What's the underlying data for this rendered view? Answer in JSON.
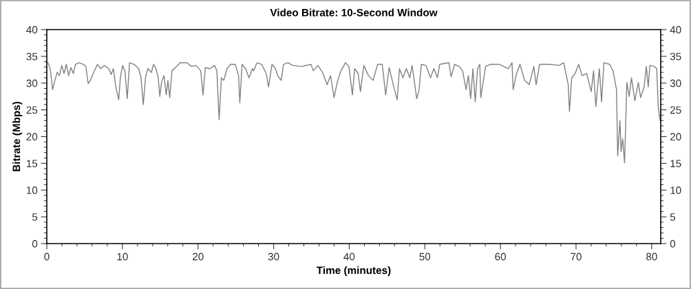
{
  "chart_data": {
    "type": "line",
    "title": "Video Bitrate: 10-Second Window",
    "xlabel": "Time (minutes)",
    "ylabel": "Bitrate (Mbps)",
    "xlim": [
      0,
      81.2
    ],
    "xticks": [
      0,
      10,
      20,
      30,
      40,
      50,
      60,
      70,
      80
    ],
    "ylim": [
      0,
      40
    ],
    "yticks": [
      0,
      5,
      10,
      15,
      20,
      25,
      30,
      35,
      40
    ],
    "y2lim": [
      0,
      40
    ],
    "y2ticks": [
      0,
      5,
      10,
      15,
      20,
      25,
      30,
      35,
      40
    ],
    "grid": false,
    "marker": "none",
    "line_style": "solid",
    "series": [
      {
        "color": "#808080",
        "x": [
          0.15,
          0.46,
          0.76,
          1.07,
          1.37,
          1.67,
          1.98,
          2.28,
          2.58,
          2.89,
          3.19,
          3.5,
          3.8,
          4.26,
          4.86,
          5.17,
          5.47,
          5.77,
          6.08,
          6.69,
          7.14,
          7.6,
          8.21,
          8.51,
          8.81,
          9.12,
          9.51,
          9.73,
          10.03,
          10.33,
          10.64,
          10.94,
          11.55,
          12.16,
          12.46,
          12.76,
          13.07,
          13.37,
          13.83,
          14.13,
          14.44,
          14.74,
          14.95,
          15.19,
          15.5,
          15.8,
          16.02,
          16.26,
          16.56,
          17.17,
          17.63,
          18.54,
          19.14,
          19.75,
          20.36,
          20.66,
          20.97,
          21.58,
          22.18,
          22.49,
          22.79,
          23.09,
          23.4,
          23.85,
          24.31,
          24.92,
          25.37,
          25.53,
          25.83,
          26.29,
          26.74,
          27.2,
          27.35,
          27.81,
          28.42,
          29.02,
          29.33,
          29.78,
          30.24,
          30.54,
          31.0,
          31.3,
          31.91,
          32.52,
          33.73,
          34.95,
          35.25,
          35.86,
          36.47,
          37.08,
          37.53,
          37.99,
          38.44,
          38.9,
          39.51,
          39.96,
          40.42,
          40.72,
          41.18,
          41.48,
          41.94,
          42.54,
          43.15,
          43.76,
          44.37,
          44.82,
          45.28,
          45.89,
          46.34,
          46.65,
          47.1,
          47.56,
          48.01,
          48.32,
          48.93,
          49.23,
          49.53,
          50.14,
          50.75,
          51.2,
          51.66,
          51.96,
          53.18,
          53.48,
          53.94,
          54.55,
          55.0,
          55.45,
          55.76,
          56.06,
          56.36,
          56.67,
          56.97,
          57.27,
          57.4,
          58.03,
          58.64,
          59.86,
          61.07,
          61.53,
          61.68,
          62.14,
          62.59,
          63.2,
          63.81,
          64.42,
          64.72,
          65.17,
          66.54,
          67.76,
          68.37,
          68.97,
          69.13,
          69.43,
          69.89,
          70.34,
          70.8,
          71.4,
          72.01,
          72.32,
          72.62,
          73.08,
          73.38,
          73.68,
          74.44,
          74.9,
          75.35,
          75.51,
          75.81,
          75.96,
          76.17,
          76.42,
          76.72,
          77.03,
          77.33,
          77.78,
          78.24,
          78.54,
          79.0,
          79.3,
          79.55,
          79.76,
          80.37,
          80.67,
          80.88,
          81.13
        ],
        "values": [
          33.8,
          32.7,
          28.8,
          30.5,
          32.0,
          31.4,
          33.3,
          31.8,
          33.5,
          31.4,
          32.9,
          31.8,
          33.5,
          33.8,
          33.5,
          33.1,
          29.9,
          30.5,
          31.6,
          33.5,
          32.7,
          33.3,
          32.7,
          31.6,
          32.7,
          29.3,
          26.9,
          31.0,
          33.3,
          32.3,
          27.1,
          33.8,
          33.5,
          32.7,
          31.0,
          26.0,
          31.2,
          32.7,
          32.0,
          33.5,
          32.7,
          31.0,
          27.5,
          30.3,
          31.4,
          27.8,
          30.5,
          27.3,
          32.3,
          33.1,
          33.8,
          33.8,
          33.1,
          33.3,
          32.3,
          27.8,
          32.9,
          32.7,
          33.3,
          32.3,
          23.2,
          31.0,
          30.5,
          32.7,
          33.5,
          33.5,
          31.4,
          26.3,
          33.5,
          32.7,
          31.0,
          32.7,
          32.3,
          33.8,
          33.5,
          31.8,
          29.3,
          33.5,
          32.7,
          31.4,
          30.5,
          33.5,
          33.8,
          33.3,
          33.1,
          33.5,
          32.3,
          33.3,
          32.0,
          29.7,
          31.4,
          27.3,
          30.3,
          32.3,
          33.8,
          33.1,
          27.8,
          32.7,
          31.8,
          28.4,
          33.3,
          31.4,
          30.5,
          33.5,
          33.5,
          27.8,
          32.9,
          29.3,
          26.9,
          32.7,
          31.0,
          32.7,
          31.0,
          33.3,
          27.1,
          28.6,
          33.5,
          33.3,
          31.0,
          32.7,
          31.0,
          33.5,
          33.8,
          31.2,
          33.5,
          33.1,
          32.3,
          28.8,
          31.4,
          27.1,
          32.7,
          26.5,
          32.7,
          33.5,
          27.3,
          33.1,
          33.5,
          33.5,
          32.7,
          33.8,
          28.8,
          31.8,
          33.5,
          30.5,
          29.7,
          33.1,
          29.7,
          33.5,
          33.5,
          33.3,
          33.8,
          29.7,
          24.7,
          31.0,
          31.8,
          33.5,
          31.4,
          31.8,
          28.4,
          32.3,
          25.6,
          32.7,
          26.5,
          33.8,
          33.5,
          32.3,
          28.8,
          16.4,
          23.0,
          17.2,
          19.6,
          15.1,
          30.1,
          27.5,
          31.0,
          26.7,
          30.1,
          27.3,
          29.3,
          33.1,
          29.3,
          33.3,
          33.1,
          32.7,
          25.4,
          23.0
        ]
      }
    ]
  }
}
